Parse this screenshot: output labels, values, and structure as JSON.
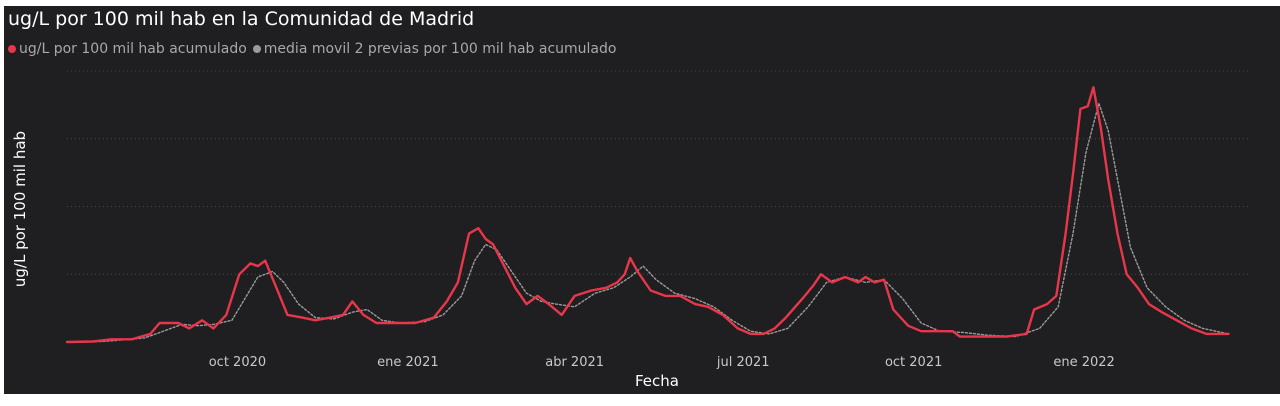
{
  "chart_data": {
    "type": "line",
    "title": "ug/L por 100 mil hab en la Comunidad de Madrid",
    "xlabel": "Fecha",
    "ylabel": "ug/L por 100 mil hab",
    "xlim": [
      "2020-07-01",
      "2022-03-31"
    ],
    "ylim": [
      0,
      100
    ],
    "y_gridlines": [
      0,
      25,
      50,
      75,
      100
    ],
    "x_ticks": [
      {
        "date": "2020-10-01",
        "label": "oct 2020"
      },
      {
        "date": "2021-01-01",
        "label": "ene 2021"
      },
      {
        "date": "2021-04-01",
        "label": "abr 2021"
      },
      {
        "date": "2021-07-01",
        "label": "jul 2021"
      },
      {
        "date": "2021-10-01",
        "label": "oct 2021"
      },
      {
        "date": "2022-01-01",
        "label": "ene 2022"
      }
    ],
    "legend": "top-left",
    "series": [
      {
        "name": "ug/L por 100 mil hab acumulado",
        "color": "#e8374a",
        "style": "solid",
        "points": [
          [
            "2020-07-01",
            0
          ],
          [
            "2020-07-15",
            0.2
          ],
          [
            "2020-07-25",
            1
          ],
          [
            "2020-08-05",
            1
          ],
          [
            "2020-08-15",
            3
          ],
          [
            "2020-08-20",
            7
          ],
          [
            "2020-08-30",
            7
          ],
          [
            "2020-09-05",
            5
          ],
          [
            "2020-09-12",
            8
          ],
          [
            "2020-09-18",
            5
          ],
          [
            "2020-09-25",
            10
          ],
          [
            "2020-10-02",
            25
          ],
          [
            "2020-10-08",
            29
          ],
          [
            "2020-10-12",
            28
          ],
          [
            "2020-10-16",
            30
          ],
          [
            "2020-10-22",
            20
          ],
          [
            "2020-10-28",
            10
          ],
          [
            "2020-11-05",
            9
          ],
          [
            "2020-11-12",
            8
          ],
          [
            "2020-11-20",
            9
          ],
          [
            "2020-11-27",
            10
          ],
          [
            "2020-12-02",
            15
          ],
          [
            "2020-12-08",
            10
          ],
          [
            "2020-12-15",
            7
          ],
          [
            "2020-12-25",
            7
          ],
          [
            "2021-01-05",
            7
          ],
          [
            "2021-01-15",
            9
          ],
          [
            "2021-01-22",
            15
          ],
          [
            "2021-01-28",
            22
          ],
          [
            "2021-02-03",
            40
          ],
          [
            "2021-02-08",
            42
          ],
          [
            "2021-02-12",
            38
          ],
          [
            "2021-02-16",
            36
          ],
          [
            "2021-02-22",
            28
          ],
          [
            "2021-02-28",
            20
          ],
          [
            "2021-03-06",
            14
          ],
          [
            "2021-03-12",
            17
          ],
          [
            "2021-03-18",
            14
          ],
          [
            "2021-03-25",
            10
          ],
          [
            "2021-04-01",
            17
          ],
          [
            "2021-04-10",
            19
          ],
          [
            "2021-04-18",
            20
          ],
          [
            "2021-04-24",
            22
          ],
          [
            "2021-04-28",
            25
          ],
          [
            "2021-05-01",
            31
          ],
          [
            "2021-05-05",
            26
          ],
          [
            "2021-05-12",
            19
          ],
          [
            "2021-05-20",
            17
          ],
          [
            "2021-05-28",
            17
          ],
          [
            "2021-06-05",
            14
          ],
          [
            "2021-06-12",
            13
          ],
          [
            "2021-06-20",
            10
          ],
          [
            "2021-06-28",
            5
          ],
          [
            "2021-07-05",
            3
          ],
          [
            "2021-07-12",
            3
          ],
          [
            "2021-07-18",
            5
          ],
          [
            "2021-07-24",
            9
          ],
          [
            "2021-08-02",
            16
          ],
          [
            "2021-08-08",
            21
          ],
          [
            "2021-08-12",
            25
          ],
          [
            "2021-08-18",
            22
          ],
          [
            "2021-08-25",
            24
          ],
          [
            "2021-09-01",
            22
          ],
          [
            "2021-09-05",
            24
          ],
          [
            "2021-09-10",
            22
          ],
          [
            "2021-09-15",
            23
          ],
          [
            "2021-09-20",
            12
          ],
          [
            "2021-09-28",
            6
          ],
          [
            "2021-10-05",
            4
          ],
          [
            "2021-10-15",
            4
          ],
          [
            "2021-10-22",
            4
          ],
          [
            "2021-10-26",
            2
          ],
          [
            "2021-11-05",
            2
          ],
          [
            "2021-11-20",
            2
          ],
          [
            "2021-12-01",
            3
          ],
          [
            "2021-12-05",
            12
          ],
          [
            "2021-12-12",
            14
          ],
          [
            "2021-12-17",
            17
          ],
          [
            "2021-12-22",
            40
          ],
          [
            "2021-12-26",
            62
          ],
          [
            "2021-12-30",
            86
          ],
          [
            "2022-01-03",
            87
          ],
          [
            "2022-01-06",
            94
          ],
          [
            "2022-01-10",
            79
          ],
          [
            "2022-01-14",
            60
          ],
          [
            "2022-01-19",
            40
          ],
          [
            "2022-01-24",
            25
          ],
          [
            "2022-01-30",
            20
          ],
          [
            "2022-02-05",
            14
          ],
          [
            "2022-02-12",
            11
          ],
          [
            "2022-02-20",
            8
          ],
          [
            "2022-02-28",
            5
          ],
          [
            "2022-03-08",
            3
          ],
          [
            "2022-03-15",
            3
          ],
          [
            "2022-03-20",
            3
          ]
        ]
      },
      {
        "name": "media movil 2 previas por 100 mil hab acumulado",
        "color": "#9a9a9a",
        "style": "dotted",
        "points": [
          [
            "2020-07-01",
            0
          ],
          [
            "2020-07-20",
            0.2
          ],
          [
            "2020-08-01",
            0.8
          ],
          [
            "2020-08-12",
            1.5
          ],
          [
            "2020-08-22",
            4
          ],
          [
            "2020-09-01",
            6.5
          ],
          [
            "2020-09-10",
            6
          ],
          [
            "2020-09-18",
            6.5
          ],
          [
            "2020-09-28",
            8
          ],
          [
            "2020-10-05",
            16
          ],
          [
            "2020-10-12",
            24
          ],
          [
            "2020-10-20",
            26
          ],
          [
            "2020-10-26",
            22
          ],
          [
            "2020-11-03",
            14
          ],
          [
            "2020-11-12",
            9
          ],
          [
            "2020-11-22",
            8.5
          ],
          [
            "2020-12-02",
            11
          ],
          [
            "2020-12-10",
            12
          ],
          [
            "2020-12-18",
            8
          ],
          [
            "2020-12-28",
            7
          ],
          [
            "2021-01-10",
            7.5
          ],
          [
            "2021-01-20",
            10
          ],
          [
            "2021-01-30",
            17
          ],
          [
            "2021-02-06",
            30
          ],
          [
            "2021-02-12",
            36
          ],
          [
            "2021-02-18",
            34
          ],
          [
            "2021-02-26",
            26
          ],
          [
            "2021-03-06",
            18
          ],
          [
            "2021-03-14",
            15
          ],
          [
            "2021-03-22",
            14
          ],
          [
            "2021-04-01",
            13
          ],
          [
            "2021-04-12",
            18
          ],
          [
            "2021-04-22",
            20
          ],
          [
            "2021-05-01",
            24
          ],
          [
            "2021-05-08",
            28
          ],
          [
            "2021-05-15",
            23
          ],
          [
            "2021-05-25",
            18
          ],
          [
            "2021-06-05",
            16
          ],
          [
            "2021-06-15",
            13
          ],
          [
            "2021-06-25",
            8
          ],
          [
            "2021-07-05",
            4
          ],
          [
            "2021-07-15",
            3
          ],
          [
            "2021-07-25",
            5
          ],
          [
            "2021-08-05",
            13
          ],
          [
            "2021-08-15",
            22
          ],
          [
            "2021-08-25",
            24
          ],
          [
            "2021-09-05",
            22
          ],
          [
            "2021-09-15",
            23
          ],
          [
            "2021-09-25",
            16
          ],
          [
            "2021-10-05",
            7
          ],
          [
            "2021-10-15",
            4
          ],
          [
            "2021-10-28",
            3.5
          ],
          [
            "2021-11-10",
            2.5
          ],
          [
            "2021-11-25",
            2
          ],
          [
            "2021-12-08",
            5
          ],
          [
            "2021-12-18",
            13
          ],
          [
            "2021-12-26",
            40
          ],
          [
            "2022-01-02",
            70
          ],
          [
            "2022-01-09",
            88
          ],
          [
            "2022-01-14",
            78
          ],
          [
            "2022-01-19",
            60
          ],
          [
            "2022-01-26",
            35
          ],
          [
            "2022-02-04",
            20
          ],
          [
            "2022-02-14",
            13
          ],
          [
            "2022-02-24",
            8
          ],
          [
            "2022-03-06",
            5
          ],
          [
            "2022-03-20",
            3
          ]
        ]
      }
    ]
  }
}
